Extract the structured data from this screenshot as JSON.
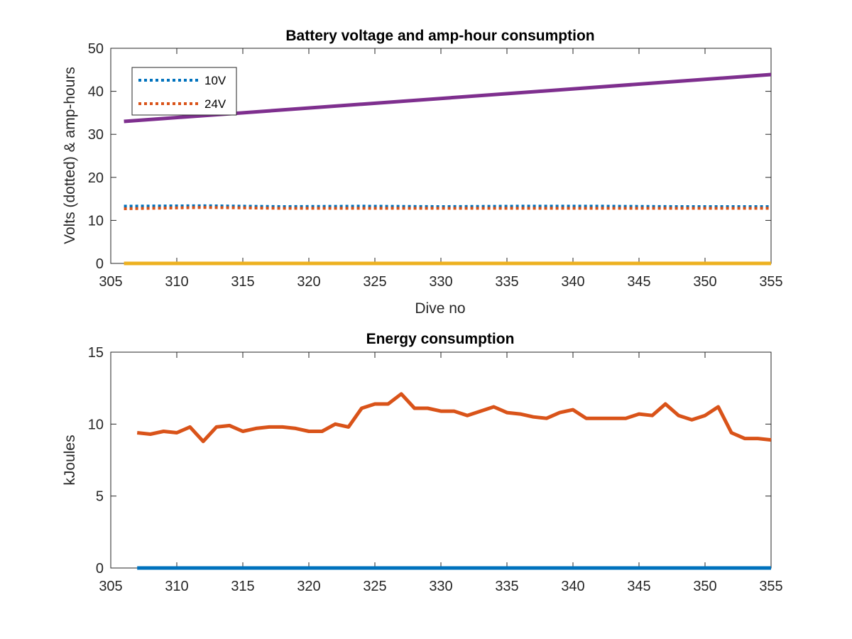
{
  "colors": {
    "blue": "#0072BD",
    "orange": "#D95319",
    "yellow": "#EDB120",
    "purple": "#7E2F8E",
    "axis": "#262626"
  },
  "chart_data": [
    {
      "type": "line",
      "title": "Battery voltage and amp-hour consumption",
      "xlabel": "Dive no",
      "ylabel": "Volts (dotted) & amp-hours",
      "xlim": [
        305,
        355
      ],
      "ylim": [
        0,
        50
      ],
      "xticks": [
        305,
        310,
        315,
        320,
        325,
        330,
        335,
        340,
        345,
        350,
        355
      ],
      "yticks": [
        0,
        10,
        20,
        30,
        40,
        50
      ],
      "grid": false,
      "legend": {
        "placement": "top-left",
        "entries": [
          "10V",
          "24V"
        ]
      },
      "series": [
        {
          "name": "10V",
          "style": "dotted",
          "color": "#0072BD",
          "x": [
            306,
            312,
            318,
            324,
            330,
            336,
            342,
            348,
            355
          ],
          "y": [
            13.3,
            13.4,
            13.2,
            13.3,
            13.2,
            13.3,
            13.3,
            13.2,
            13.2
          ]
        },
        {
          "name": "24V",
          "style": "dotted",
          "color": "#D95319",
          "x": [
            306,
            312,
            318,
            324,
            330,
            336,
            342,
            348,
            355
          ],
          "y": [
            12.7,
            13.0,
            12.8,
            12.8,
            12.8,
            12.8,
            12.8,
            12.8,
            12.8
          ]
        },
        {
          "style": "solid",
          "color": "#EDB120",
          "x": [
            306,
            355
          ],
          "y": [
            0,
            0
          ]
        },
        {
          "style": "solid",
          "color": "#7E2F8E",
          "x": [
            306,
            355
          ],
          "y": [
            33.0,
            43.9
          ]
        }
      ]
    },
    {
      "type": "line",
      "title": "Energy consumption",
      "xlabel": "",
      "ylabel": "kJoules",
      "xlim": [
        305,
        355
      ],
      "ylim": [
        0,
        15
      ],
      "xticks": [
        305,
        310,
        315,
        320,
        325,
        330,
        335,
        340,
        345,
        350,
        355
      ],
      "yticks": [
        0,
        5,
        10,
        15
      ],
      "grid": false,
      "series": [
        {
          "style": "solid",
          "color": "#0072BD",
          "x": [
            307,
            355
          ],
          "y": [
            0,
            0
          ]
        },
        {
          "style": "solid",
          "color": "#D95319",
          "x": [
            307,
            308,
            309,
            310,
            311,
            312,
            313,
            314,
            315,
            316,
            317,
            318,
            319,
            320,
            321,
            322,
            323,
            324,
            325,
            326,
            327,
            328,
            329,
            330,
            331,
            332,
            333,
            334,
            335,
            336,
            337,
            338,
            339,
            340,
            341,
            342,
            343,
            344,
            345,
            346,
            347,
            348,
            349,
            350,
            351,
            352,
            353,
            354,
            355
          ],
          "y": [
            9.4,
            9.3,
            9.5,
            9.4,
            9.8,
            8.8,
            9.8,
            9.9,
            9.5,
            9.7,
            9.8,
            9.8,
            9.7,
            9.5,
            9.5,
            10.0,
            9.8,
            11.1,
            11.4,
            11.4,
            12.1,
            11.1,
            11.1,
            10.9,
            10.9,
            10.6,
            10.9,
            11.2,
            10.8,
            10.7,
            10.5,
            10.4,
            10.8,
            11.0,
            10.4,
            10.4,
            10.4,
            10.4,
            10.7,
            10.6,
            11.4,
            10.6,
            10.3,
            10.6,
            11.2,
            9.4,
            9.0,
            9.0,
            8.9
          ]
        }
      ]
    }
  ]
}
